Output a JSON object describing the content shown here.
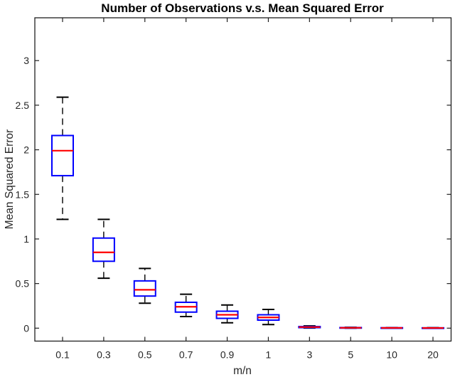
{
  "chart_data": {
    "type": "boxplot",
    "title": "Number of Observations v.s. Mean Squared Error",
    "xlabel": "m/n",
    "ylabel": "Mean Squared Error",
    "categories": [
      "0.1",
      "0.3",
      "0.5",
      "0.7",
      "0.9",
      "1",
      "3",
      "5",
      "10",
      "20"
    ],
    "boxes": [
      {
        "category": "0.1",
        "whisker_low": 1.22,
        "q1": 1.71,
        "median": 1.99,
        "q3": 2.16,
        "whisker_high": 2.59
      },
      {
        "category": "0.3",
        "whisker_low": 0.56,
        "q1": 0.75,
        "median": 0.85,
        "q3": 1.01,
        "whisker_high": 1.22
      },
      {
        "category": "0.5",
        "whisker_low": 0.28,
        "q1": 0.36,
        "median": 0.43,
        "q3": 0.53,
        "whisker_high": 0.67
      },
      {
        "category": "0.7",
        "whisker_low": 0.13,
        "q1": 0.18,
        "median": 0.24,
        "q3": 0.29,
        "whisker_high": 0.38
      },
      {
        "category": "0.9",
        "whisker_low": 0.06,
        "q1": 0.11,
        "median": 0.15,
        "q3": 0.19,
        "whisker_high": 0.26
      },
      {
        "category": "1",
        "whisker_low": 0.04,
        "q1": 0.09,
        "median": 0.12,
        "q3": 0.15,
        "whisker_high": 0.21
      },
      {
        "category": "3",
        "whisker_low": 0.002,
        "q1": 0.006,
        "median": 0.012,
        "q3": 0.018,
        "whisker_high": 0.025
      },
      {
        "category": "5",
        "whisker_low": 0.0,
        "q1": 0.002,
        "median": 0.004,
        "q3": 0.007,
        "whisker_high": 0.01
      },
      {
        "category": "10",
        "whisker_low": 0.0,
        "q1": 0.001,
        "median": 0.003,
        "q3": 0.005,
        "whisker_high": 0.007
      },
      {
        "category": "20",
        "whisker_low": 0.0,
        "q1": 0.001,
        "median": 0.002,
        "q3": 0.004,
        "whisker_high": 0.006
      }
    ],
    "yticks": [
      0,
      0.5,
      1,
      1.5,
      2,
      2.5,
      3
    ],
    "ytick_labels": [
      "0",
      "0.5",
      "1",
      "1.5",
      "2",
      "2.5",
      "3"
    ],
    "ylim": [
      -0.145,
      3.48
    ],
    "grid": false,
    "legend": null,
    "colors": {
      "box": "#0000ff",
      "median": "#ff0000",
      "whisker": "#000000",
      "axis": "#1f1f1f",
      "tick_label": "#262626",
      "background": "#ffffff"
    }
  }
}
